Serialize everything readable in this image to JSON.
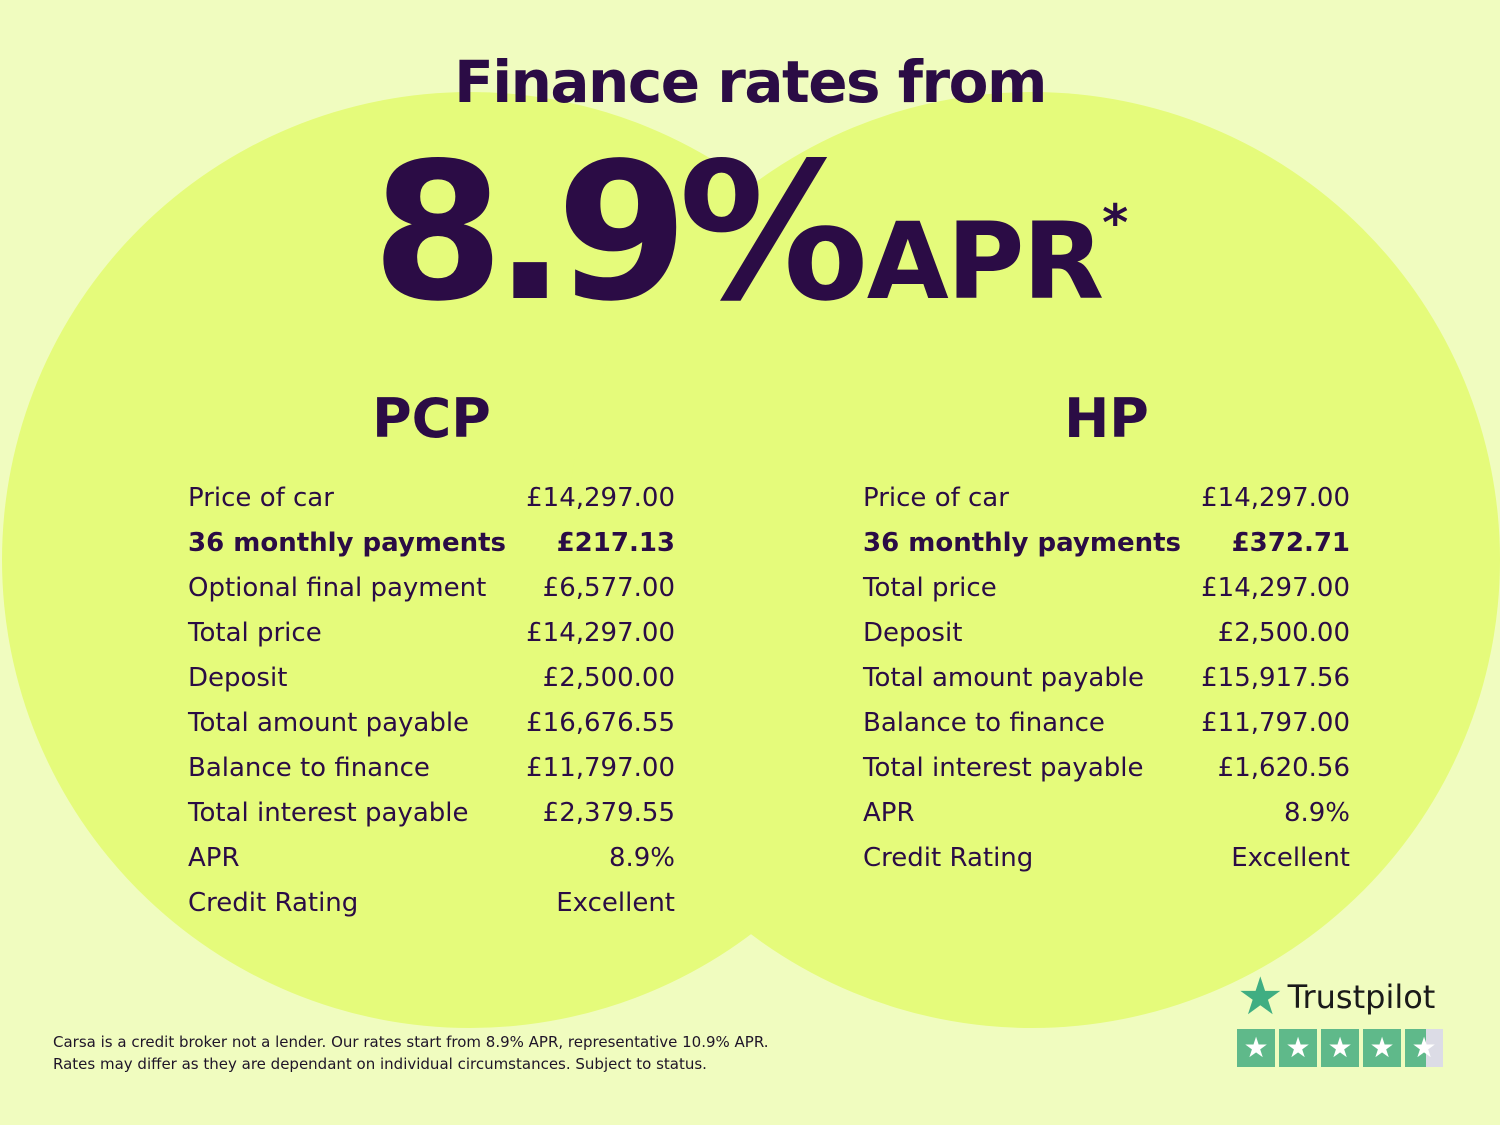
{
  "headline": "Finance rates from",
  "rate": {
    "value": "8.9%",
    "suffix": "APR",
    "asterisk": "*"
  },
  "pcp": {
    "title": "PCP",
    "rows": [
      {
        "label": "Price of car",
        "value": "£14,297.00"
      },
      {
        "label": "36 monthly payments",
        "value": "£217.13",
        "bold": true
      },
      {
        "label": "Optional final payment",
        "value": "£6,577.00"
      },
      {
        "label": "Total price",
        "value": "£14,297.00"
      },
      {
        "label": "Deposit",
        "value": "£2,500.00"
      },
      {
        "label": "Total amount payable",
        "value": "£16,676.55"
      },
      {
        "label": "Balance to finance",
        "value": "£11,797.00"
      },
      {
        "label": "Total interest payable",
        "value": "£2,379.55"
      },
      {
        "label": "APR",
        "value": "8.9%"
      },
      {
        "label": "Credit Rating",
        "value": "Excellent"
      }
    ]
  },
  "hp": {
    "title": "HP",
    "rows": [
      {
        "label": "Price of car",
        "value": "£14,297.00"
      },
      {
        "label": "36 monthly payments",
        "value": "£372.71",
        "bold": true
      },
      {
        "label": "Total price",
        "value": "£14,297.00"
      },
      {
        "label": "Deposit",
        "value": "£2,500.00"
      },
      {
        "label": "Total amount payable",
        "value": "£15,917.56"
      },
      {
        "label": "Balance to finance",
        "value": "£11,797.00"
      },
      {
        "label": "Total interest payable",
        "value": "£1,620.56"
      },
      {
        "label": "APR",
        "value": "8.9%"
      },
      {
        "label": "Credit Rating",
        "value": "Excellent"
      }
    ]
  },
  "disclaimer": [
    "Carsa is a credit broker not a lender. Our rates start from 8.9% APR, representative 10.9% APR.",
    "Rates may differ as they are dependant on individual circumstances. Subject to status."
  ],
  "trustpilot": {
    "name": "Trustpilot",
    "rating_stars": 4.5,
    "max_stars": 5
  },
  "colors": {
    "background": "#f0fcbf",
    "circle": "#e5fb7b",
    "text": "#2b0c45",
    "trustpilot_green": "#5fb98a"
  }
}
